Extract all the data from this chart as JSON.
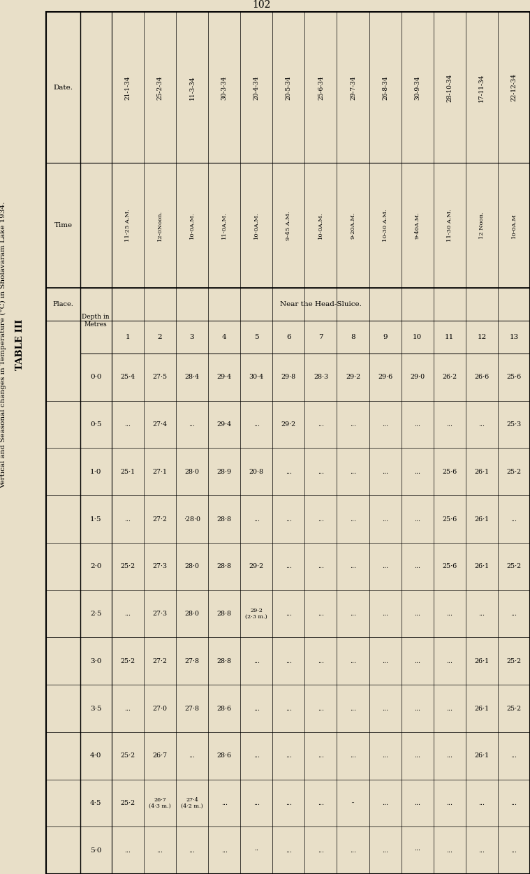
{
  "page_number": "102",
  "title_line1": "TABLE III",
  "title_line2": "Vertical and Seasonal changes in Temperature (°C) in Sholavaram Lake 1934.",
  "bg_color": "#e8dfc8",
  "dates": [
    "21-1-34",
    "25-2-34",
    "11-3-34",
    "30-3-34",
    "20-4-34",
    "20-5-34",
    "25-6-34",
    "29-7-34",
    "26-8-34",
    "30-9-34",
    "28-10-34",
    "17-11-34",
    "22-12-34"
  ],
  "times": [
    "11-25 A.M.",
    "12-0Noon.",
    "10-0A.M.",
    "11-0A.M.",
    "10-0A.M.",
    "9-45 A.M.",
    "10-0A.M.",
    "9-20A.M.",
    "10-30 A.M.",
    "9-40A.M.",
    "11-30 A.M.",
    "12 Noon.",
    "10-0A.M"
  ],
  "col_numbers": [
    "1",
    "2",
    "3",
    "4",
    "5",
    "6",
    "7",
    "8",
    "9",
    "10",
    "11",
    "12",
    "13"
  ],
  "depths": [
    "0·0",
    "0·5",
    "1·0",
    "1·5",
    "2·0",
    "2·5",
    "3·0",
    "3·5",
    "4·0",
    "4·5",
    "5·0"
  ],
  "near_head_sluice": "Near the Head-Sluice.",
  "data": {
    "1": [
      "25·4",
      "...",
      "25·1",
      "...",
      "25·2",
      "...",
      "25·2",
      "...",
      "25·2",
      "25·2",
      "..."
    ],
    "2": [
      "27·5",
      "27·4",
      "27·1",
      "27·2",
      "27·3",
      "27·3",
      "27·2",
      "27·0",
      "26·7",
      "26·7\n(4·3 m.)",
      "..."
    ],
    "3": [
      "28·4",
      "...",
      "28·0",
      "·28·0",
      "28·0",
      "28·0",
      "27·8",
      "27·8",
      "...",
      "27·4\n(4·2 m.)",
      "..."
    ],
    "4": [
      "29·4",
      "29·4",
      "28·9",
      "28·8",
      "28·8",
      "28·8",
      "28·8",
      "28·6",
      "28·6",
      "...",
      "..."
    ],
    "5": [
      "30·4",
      "...",
      "20·8",
      "...",
      "29·2",
      "29·2\n(2·3 m.)",
      "...",
      "...",
      "...",
      "...",
      "··"
    ],
    "6": [
      "29·8",
      "29·2",
      "...",
      "...",
      "...",
      "...",
      "...",
      "...",
      "...",
      "...",
      "..."
    ],
    "7": [
      "28·3",
      "...",
      "...",
      "...",
      "...",
      "...",
      "...",
      "...",
      "...",
      "...",
      "..."
    ],
    "8": [
      "29·2",
      "...",
      "...",
      "...",
      "...",
      "...",
      "...",
      "...",
      "...",
      "··",
      "..."
    ],
    "9": [
      "29·6",
      "...",
      "...",
      "...",
      "...",
      "...",
      "...",
      "...",
      "...",
      "...",
      "..."
    ],
    "10": [
      "29·0",
      "...",
      "...",
      "...",
      "...",
      "...",
      "...",
      "...",
      "...",
      "...",
      "···"
    ],
    "11": [
      "26·2",
      "...",
      "25·6",
      "25·6",
      "25·6",
      "...",
      "...",
      "...",
      "...",
      "...",
      "..."
    ],
    "12": [
      "26·6",
      "...",
      "26·1",
      "26·1",
      "26·1",
      "...",
      "26·1",
      "26·1",
      "26·1",
      "...",
      "..."
    ],
    "13": [
      "25·6",
      "25·3",
      "25·2",
      "...",
      "25·2",
      "...",
      "25·2",
      "25·2",
      "...",
      "...",
      "..."
    ]
  }
}
